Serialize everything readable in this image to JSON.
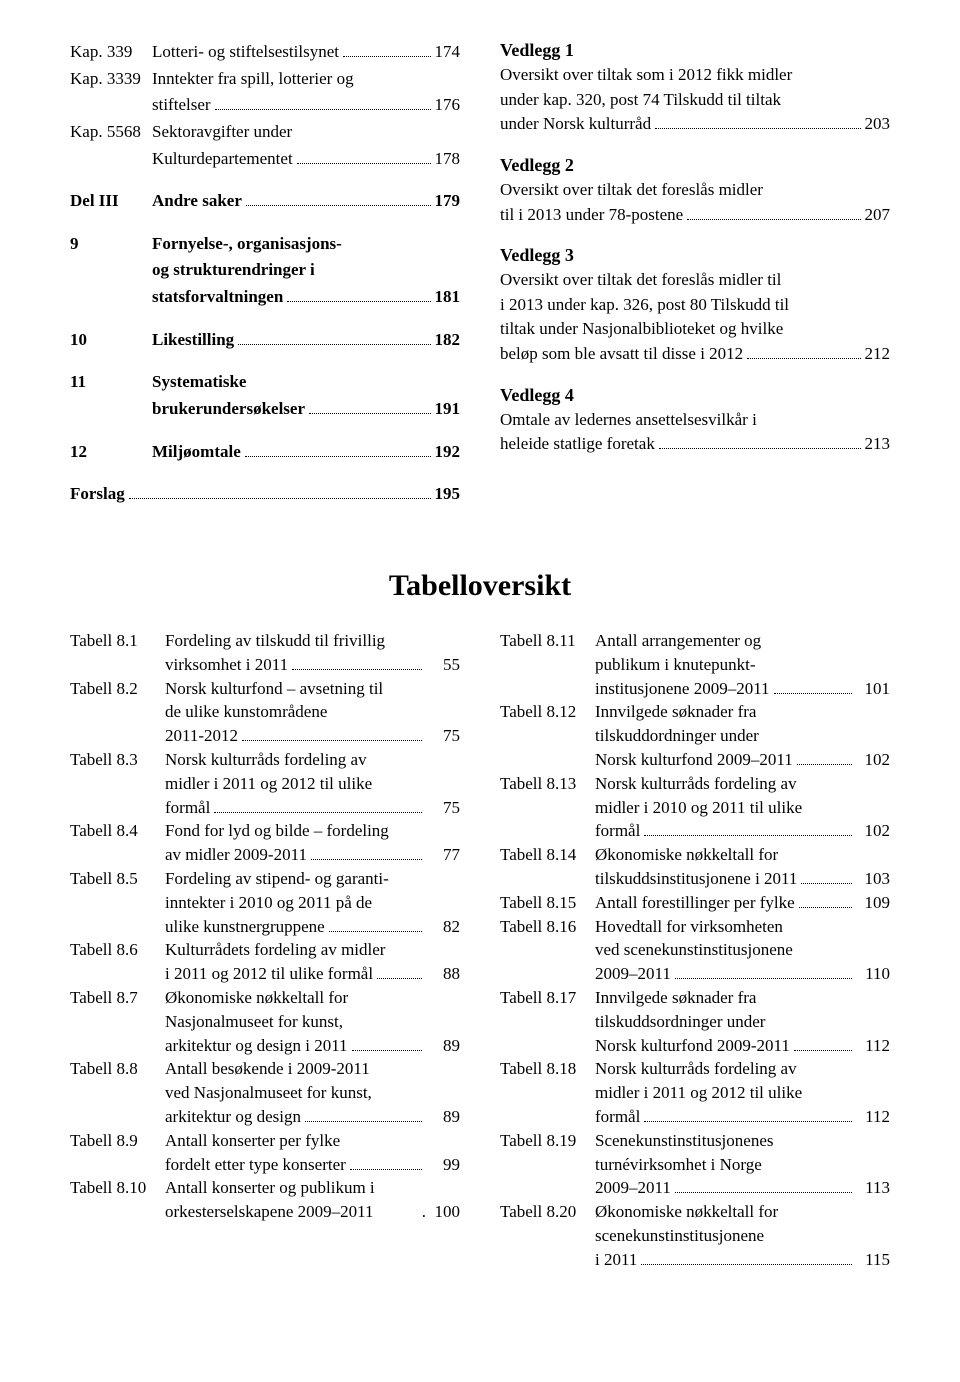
{
  "toc_left": [
    {
      "num": "Kap. 339",
      "lines": [
        "Lotteri- og stiftelsestilsynet"
      ],
      "page": "174",
      "bold": false
    },
    {
      "num": "Kap. 3339",
      "lines": [
        "Inntekter fra spill, lotterier og",
        "stiftelser"
      ],
      "page": "176",
      "bold": false
    },
    {
      "num": "Kap. 5568",
      "lines": [
        "Sektoravgifter under",
        "Kulturdepartementet"
      ],
      "page": "178",
      "bold": false
    },
    {
      "gap": true
    },
    {
      "num": "Del III",
      "lines": [
        "Andre saker"
      ],
      "page": "179",
      "bold": true
    },
    {
      "gap": true
    },
    {
      "num": "9",
      "lines": [
        "Fornyelse-, organisasjons-",
        "og strukturendringer i",
        "statsforvaltningen"
      ],
      "page": "181",
      "bold": true
    },
    {
      "gap": true
    },
    {
      "num": "10",
      "lines": [
        "Likestilling"
      ],
      "page": "182",
      "bold": true
    },
    {
      "gap": true
    },
    {
      "num": "11",
      "lines": [
        "Systematiske",
        "brukerundersøkelser"
      ],
      "page": "191",
      "bold": true
    },
    {
      "gap": true
    },
    {
      "num": "12",
      "lines": [
        "Miljøomtale"
      ],
      "page": "192",
      "bold": true
    },
    {
      "gap": true
    },
    {
      "num": "Forslag",
      "lines": [
        ""
      ],
      "page": "195",
      "bold": true,
      "noindent": true
    }
  ],
  "vedlegg": [
    {
      "head": "Vedlegg 1",
      "lines": [
        "Oversikt over tiltak som i 2012 fikk midler",
        "under kap. 320, post 74 Tilskudd til tiltak",
        "under Norsk kulturråd"
      ],
      "page": "203"
    },
    {
      "head": "Vedlegg 2",
      "lines": [
        "Oversikt over tiltak det foreslås midler",
        "til i 2013 under 78-postene"
      ],
      "page": "207"
    },
    {
      "head": "Vedlegg 3",
      "lines": [
        "Oversikt over tiltak det foreslås midler til",
        "i 2013 under kap. 326, post 80 Tilskudd til",
        "tiltak under Nasjonalbiblioteket og hvilke",
        "beløp som ble avsatt til disse i 2012"
      ],
      "page": "212"
    },
    {
      "head": "Vedlegg 4",
      "lines": [
        "Omtale av ledernes ansettelsesvilkår i",
        "heleide statlige foretak"
      ],
      "page": "213"
    }
  ],
  "tabelloversikt_title": "Tabelloversikt",
  "tables_left": [
    {
      "num": "Tabell 8.1",
      "lines": [
        "Fordeling av tilskudd til frivillig",
        "virksomhet i 2011"
      ],
      "page": "55"
    },
    {
      "num": "Tabell 8.2",
      "lines": [
        "Norsk kulturfond – avsetning til",
        "de ulike kunstområdene",
        "2011-2012"
      ],
      "page": "75"
    },
    {
      "num": "Tabell 8.3",
      "lines": [
        "Norsk kulturråds fordeling av",
        "midler i 2011 og 2012 til ulike",
        "formål"
      ],
      "page": "75"
    },
    {
      "num": "Tabell 8.4",
      "lines": [
        "Fond for lyd og bilde – fordeling",
        "av midler 2009-2011"
      ],
      "page": "77"
    },
    {
      "num": "Tabell 8.5",
      "lines": [
        "Fordeling av stipend- og garanti-",
        "inntekter i 2010 og 2011 på de",
        "ulike kunstnergruppene"
      ],
      "page": "82"
    },
    {
      "num": "Tabell 8.6",
      "lines": [
        "Kulturrådets fordeling av midler",
        "i 2011 og 2012 til ulike formål"
      ],
      "page": "88"
    },
    {
      "num": "Tabell 8.7",
      "lines": [
        "Økonomiske nøkkeltall for",
        "Nasjonalmuseet for kunst,",
        "arkitektur og design i 2011"
      ],
      "page": "89"
    },
    {
      "num": "Tabell 8.8",
      "lines": [
        "Antall besøkende i 2009-2011",
        "ved Nasjonalmuseet for kunst,",
        "arkitektur og design"
      ],
      "page": "89"
    },
    {
      "num": "Tabell 8.9",
      "lines": [
        "Antall konserter per fylke",
        "fordelt etter type konserter"
      ],
      "page": "99"
    },
    {
      "num": "Tabell 8.10",
      "lines": [
        "Antall konserter og publikum i",
        "orkesterselskapene 2009–2011"
      ],
      "page": "100",
      "nodots": true
    }
  ],
  "tables_right": [
    {
      "num": "Tabell 8.11",
      "lines": [
        "Antall arrangementer og",
        "publikum i knutepunkt-",
        "institusjonene 2009–2011"
      ],
      "page": "101"
    },
    {
      "num": "Tabell 8.12",
      "lines": [
        "Innvilgede søknader fra",
        "tilskuddordninger under",
        "Norsk kulturfond 2009–2011"
      ],
      "page": "102"
    },
    {
      "num": "Tabell 8.13",
      "lines": [
        "Norsk kulturråds fordeling av",
        "midler i 2010 og 2011 til ulike",
        "formål"
      ],
      "page": "102"
    },
    {
      "num": "Tabell 8.14",
      "lines": [
        "Økonomiske nøkkeltall for",
        "tilskuddsinstitusjonene i 2011"
      ],
      "page": "103"
    },
    {
      "num": "Tabell 8.15",
      "lines": [
        "Antall forestillinger per fylke"
      ],
      "page": "109"
    },
    {
      "num": "Tabell 8.16",
      "lines": [
        "Hovedtall for virksomheten",
        "ved scenekunstinstitusjonene",
        "2009–2011"
      ],
      "page": "110"
    },
    {
      "num": "Tabell 8.17",
      "lines": [
        "Innvilgede søknader fra",
        "tilskuddsordninger under",
        "Norsk kulturfond 2009-2011"
      ],
      "page": "112"
    },
    {
      "num": "Tabell 8.18",
      "lines": [
        "Norsk kulturråds fordeling av",
        "midler i 2011 og 2012 til ulike",
        "formål"
      ],
      "page": "112"
    },
    {
      "num": "Tabell 8.19",
      "lines": [
        "Scenekunstinstitusjonenes",
        "turnévirksomhet i Norge",
        "2009–2011"
      ],
      "page": "113"
    },
    {
      "num": "Tabell 8.20",
      "lines": [
        "Økonomiske nøkkeltall for",
        "scenekunstinstitusjonene",
        "i 2011"
      ],
      "page": "115"
    }
  ]
}
